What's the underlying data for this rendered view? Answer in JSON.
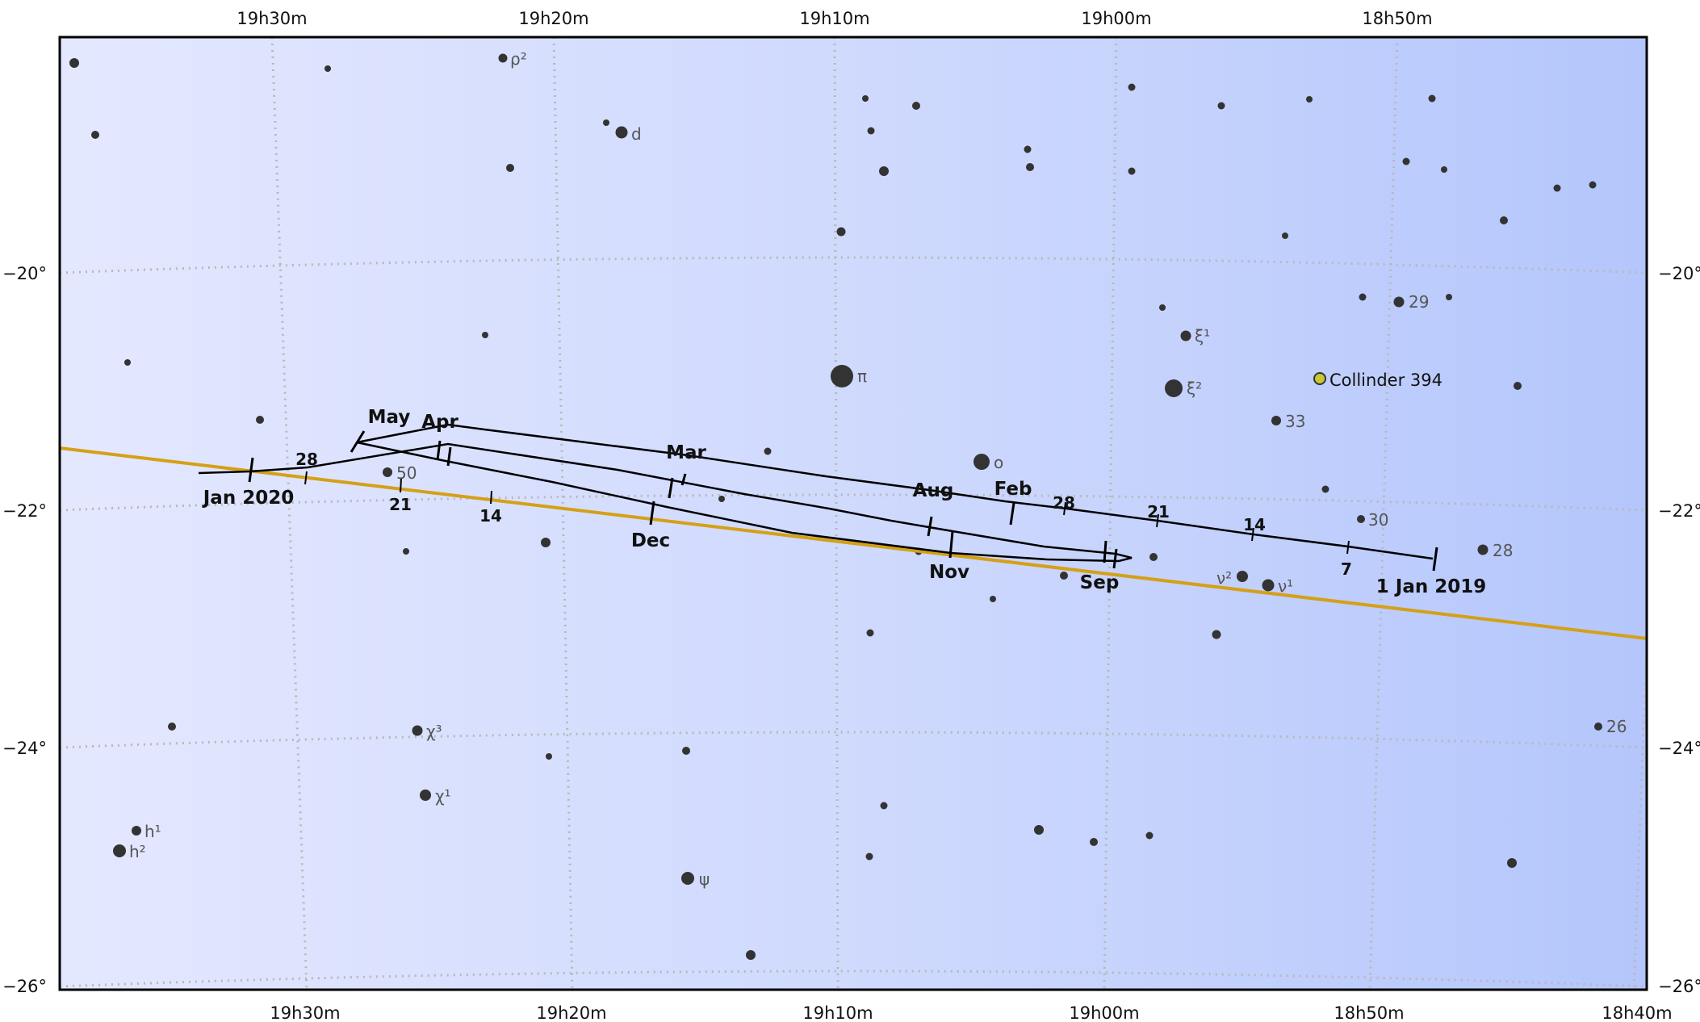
{
  "chart_data": {
    "type": "map",
    "colors": {
      "ecliptic": "#d4a017",
      "path": "#000000",
      "star": "#333333",
      "cluster": "#c8c830",
      "grid": "#b8b8b8",
      "sky": "#c8d4ff"
    },
    "grid": true,
    "ra_top_labels": [
      "19h30m",
      "19h20m",
      "19h10m",
      "19h00m",
      "18h50m"
    ],
    "ra_bottom_labels": [
      "19h30m",
      "19h20m",
      "19h10m",
      "19h00m",
      "18h50m",
      "18h40m"
    ],
    "dec_labels": [
      "−20°",
      "−22°",
      "−24°",
      "−26°"
    ],
    "star_labels": [
      {
        "id": "rho2",
        "text": "ρ²"
      },
      {
        "id": "d",
        "text": "d"
      },
      {
        "id": "pi",
        "text": "π"
      },
      {
        "id": "omicron",
        "text": "o"
      },
      {
        "id": "xi1",
        "text": "ξ¹"
      },
      {
        "id": "xi2",
        "text": "ξ²"
      },
      {
        "id": "29",
        "text": "29"
      },
      {
        "id": "33",
        "text": "33"
      },
      {
        "id": "30",
        "text": "30"
      },
      {
        "id": "28",
        "text": "28"
      },
      {
        "id": "nu2",
        "text": "ν²"
      },
      {
        "id": "nu1",
        "text": "ν¹"
      },
      {
        "id": "50",
        "text": "50"
      },
      {
        "id": "chi3",
        "text": "χ³"
      },
      {
        "id": "chi1",
        "text": "χ¹"
      },
      {
        "id": "h1",
        "text": "h¹"
      },
      {
        "id": "h2",
        "text": "h²"
      },
      {
        "id": "psi",
        "text": "ψ"
      },
      {
        "id": "26",
        "text": "26"
      }
    ],
    "cluster_label": "Collinder 394",
    "path_labels": {
      "jan2019": "1 Jan 2019",
      "d7": "7",
      "d14": "14",
      "d21": "21",
      "d28": "28",
      "feb": "Feb",
      "mar": "Mar",
      "apr": "Apr",
      "may": "May",
      "aug": "Aug",
      "sep": "Sep",
      "nov": "Nov",
      "dec": "Dec",
      "jan2020": "Jan 2020",
      "e14": "14",
      "e21": "21",
      "e28": "28"
    }
  }
}
